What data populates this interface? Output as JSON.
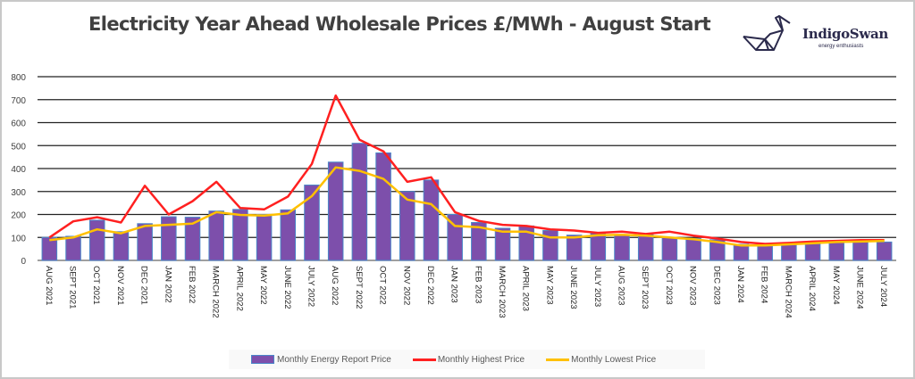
{
  "chart_data": {
    "type": "bar",
    "title": "Electricity Year Ahead Wholesale Prices £/MWh - August Start",
    "xlabel": "",
    "ylabel": "",
    "ylim": [
      0,
      800
    ],
    "yticks": [
      0,
      100,
      200,
      300,
      400,
      500,
      600,
      700,
      800
    ],
    "grid": true,
    "legend_position": "bottom",
    "categories": [
      "AUG 2021",
      "SEPT 2021",
      "OCT 2021",
      "NOV 2021",
      "DEC 2021",
      "JAN 2022",
      "FEB 2022",
      "MARCH 2022",
      "APRIL 2022",
      "MAY 2022",
      "JUNE 2022",
      "JULY 2022",
      "AUG 2022",
      "SEPT 2022",
      "OCT 2022",
      "NOV 2022",
      "DEC 2022",
      "JAN 2023",
      "FEB 2023",
      "MARCH 2023",
      "APRIL 2023",
      "MAY 2023",
      "JUNE 2023",
      "JULY 2023",
      "AUG 2023",
      "SEPT 2023",
      "OCT 2023",
      "NOV 2023",
      "DEC 2023",
      "JAN 2024",
      "FEB 2024",
      "MARCH 2024",
      "APRIL 2024",
      "MAY 2024",
      "JUNE 2024",
      "JULY 2024"
    ],
    "series": [
      {
        "name": "Monthly Energy Report Price",
        "type": "bar",
        "color": "#7d4fab",
        "edge_color": "#4a86c8",
        "values": [
          100,
          105,
          175,
          125,
          160,
          190,
          188,
          215,
          222,
          200,
          220,
          328,
          428,
          510,
          468,
          300,
          350,
          200,
          165,
          140,
          150,
          130,
          110,
          118,
          110,
          112,
          100,
          95,
          90,
          70,
          65,
          70,
          72,
          80,
          85,
          80
        ]
      },
      {
        "name": "Monthly Highest Price",
        "type": "line",
        "color": "#ff2020",
        "values": [
          100,
          170,
          188,
          165,
          325,
          200,
          258,
          342,
          228,
          222,
          278,
          420,
          718,
          525,
          475,
          342,
          362,
          210,
          172,
          155,
          150,
          135,
          130,
          120,
          125,
          115,
          125,
          108,
          95,
          80,
          72,
          76,
          82,
          85,
          88,
          88
        ]
      },
      {
        "name": "Monthly Lowest Price",
        "type": "line",
        "color": "#ffc000",
        "values": [
          88,
          100,
          135,
          118,
          150,
          155,
          160,
          210,
          198,
          195,
          205,
          280,
          405,
          390,
          355,
          265,
          245,
          150,
          145,
          125,
          125,
          100,
          100,
          110,
          112,
          108,
          100,
          92,
          80,
          65,
          65,
          70,
          75,
          80,
          82,
          85
        ]
      }
    ]
  },
  "logo": {
    "name": "IndigoSwan",
    "tagline": "energy enthusiasts",
    "color": "#2b2a4c"
  }
}
